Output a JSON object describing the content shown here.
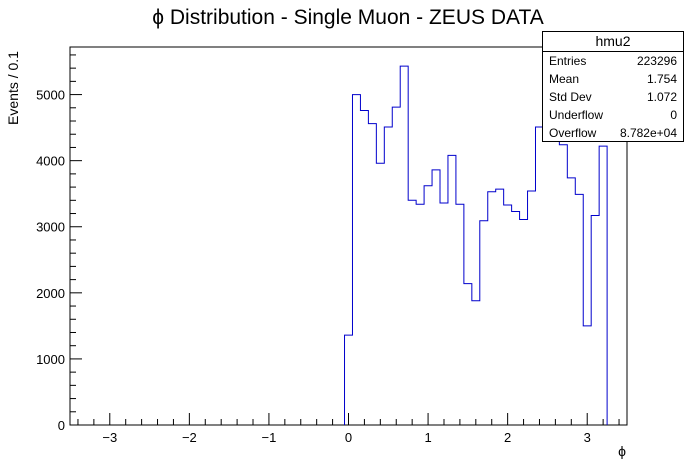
{
  "chart_data": {
    "type": "histogram",
    "title": "ϕ Distribution - Single Muon - ZEUS DATA",
    "xlabel": "ϕ",
    "ylabel": "Events / 0.1",
    "xlim": [
      -3.5,
      3.5
    ],
    "ylim": [
      0,
      5720
    ],
    "bin_width": 0.1,
    "x_ticks": [
      -3,
      -2,
      -1,
      0,
      1,
      2,
      3
    ],
    "x_tick_labels": [
      "−3",
      "−2",
      "−1",
      "0",
      "1",
      "2",
      "3"
    ],
    "y_ticks": [
      0,
      1000,
      2000,
      3000,
      4000,
      5000
    ],
    "y_tick_labels": [
      "0",
      "1000",
      "2000",
      "3000",
      "4000",
      "5000"
    ],
    "bins_low_edges": [
      -0.05,
      0.05,
      0.15,
      0.25,
      0.35,
      0.45,
      0.55,
      0.65,
      0.75,
      0.85,
      0.95,
      1.05,
      1.15,
      1.25,
      1.35,
      1.45,
      1.55,
      1.65,
      1.75,
      1.85,
      1.95,
      2.05,
      2.15,
      2.25,
      2.35,
      2.45,
      2.55,
      2.65,
      2.75,
      2.85,
      2.95,
      3.05,
      3.15
    ],
    "values": [
      1360,
      5000,
      4760,
      4560,
      3960,
      4510,
      4810,
      5430,
      3400,
      3340,
      3620,
      3860,
      3360,
      4080,
      3340,
      2140,
      1880,
      3090,
      3530,
      3570,
      3330,
      3230,
      3110,
      3540,
      4510,
      4600,
      4380,
      4240,
      3740,
      3490,
      1500,
      3170,
      4220
    ],
    "line_color": "#0000cc",
    "grid": false,
    "stats": {
      "title": "hmu2",
      "rows": [
        {
          "label": "Entries",
          "value": "223296"
        },
        {
          "label": "Mean",
          "value": "1.754"
        },
        {
          "label": "Std Dev",
          "value": "1.072"
        },
        {
          "label": "Underflow",
          "value": "0"
        },
        {
          "label": "Overflow",
          "value": "8.782e+04"
        }
      ]
    }
  }
}
